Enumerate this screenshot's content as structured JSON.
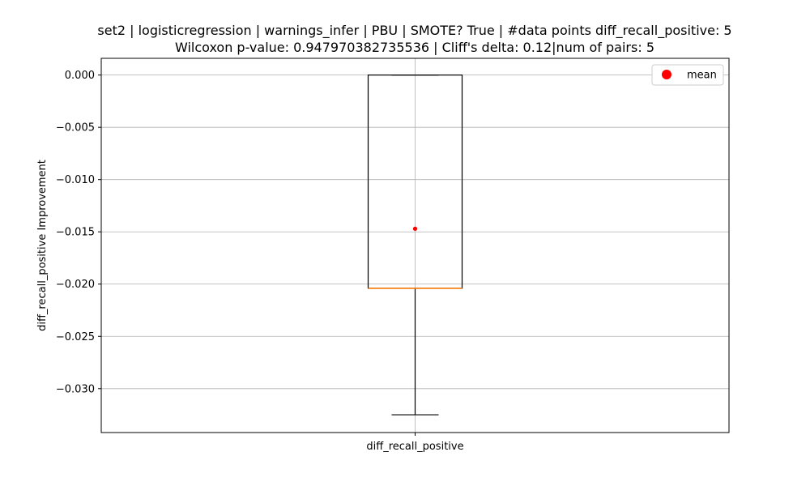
{
  "chart_data": {
    "type": "box",
    "title_line1": "set2 | logisticregression | warnings_infer | PBU | SMOTE? True | #data points diff_recall_positive: 5",
    "title_line2": "Wilcoxon p-value: 0.947970382735536 | Cliff's delta: 0.12|num of pairs: 5",
    "xlabel": "",
    "ylabel": "diff_recall_positive Improvement",
    "categories": [
      "diff_recall_positive"
    ],
    "ylim": [
      -0.0342,
      0.0016
    ],
    "yticks": [
      0.0,
      -0.005,
      -0.01,
      -0.015,
      -0.02,
      -0.025,
      -0.03
    ],
    "ytick_labels": [
      "0.000",
      "−0.005",
      "−0.010",
      "−0.015",
      "−0.020",
      "−0.025",
      "−0.030"
    ],
    "grid": true,
    "legend": {
      "placement": "top-right",
      "entries": [
        {
          "label": "mean",
          "color": "#ff0000"
        }
      ]
    },
    "box": {
      "whisker_low": -0.0325,
      "q1": -0.0204,
      "median": -0.0204,
      "q3": 0.0,
      "whisker_high": 0.0,
      "mean": -0.0147
    },
    "colors": {
      "box": "#000000",
      "median": "#ff7f0e",
      "mean": "#ff0000",
      "grid": "#b0b0b0"
    }
  }
}
